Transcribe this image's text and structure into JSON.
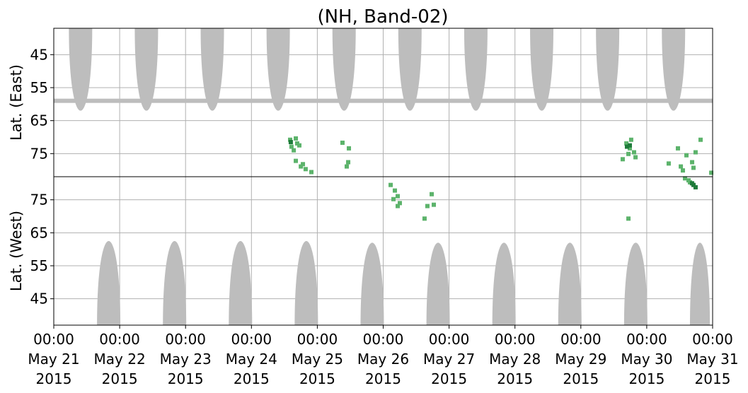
{
  "chart_data": [
    {
      "type": "scatter",
      "title": "(NH, Band-02)",
      "ylabel": "Lat. (East)",
      "xlim": [
        "2015-05-21 00:00",
        "2015-05-31 00:00"
      ],
      "ylim": [
        82,
        37
      ],
      "yticks": [
        45,
        55,
        65,
        75
      ],
      "grid": true,
      "band": {
        "lat": 59,
        "color": "#bdbdbd"
      },
      "regions": {
        "color": "#bdbdbd",
        "start": [
          "2015-05-21 05:30",
          "2015-05-22 05:30",
          "2015-05-23 05:30",
          "2015-05-24 05:30",
          "2015-05-25 05:30",
          "2015-05-26 05:30",
          "2015-05-27 05:30",
          "2015-05-28 05:30",
          "2015-05-29 05:30",
          "2015-05-30 05:30"
        ],
        "end": [
          "2015-05-21 14:00",
          "2015-05-22 14:00",
          "2015-05-23 14:00",
          "2015-05-24 14:00",
          "2015-05-25 14:00",
          "2015-05-26 14:00",
          "2015-05-27 14:00",
          "2015-05-28 14:00",
          "2015-05-29 14:00",
          "2015-05-30 14:00"
        ],
        "lat": [
          62,
          62,
          62,
          62,
          62,
          62,
          62,
          62,
          62,
          62
        ]
      },
      "series": [
        {
          "color": "#5cb36b",
          "x": [
            "2015-05-24 14:06",
            "2015-05-24 16:10",
            "2015-05-24 14:35",
            "2015-05-24 16:40",
            "2015-05-24 15:25",
            "2015-05-24 17:27",
            "2015-05-24 16:10",
            "2015-05-24 18:00",
            "2015-05-24 19:45",
            "2015-05-24 21:50",
            "2015-05-24 18:45",
            "2015-05-25 09:10",
            "2015-05-25 10:43",
            "2015-05-25 11:15",
            "2015-05-25 11:30",
            "2015-05-29 15:15",
            "2015-05-29 16:35",
            "2015-05-29 17:50",
            "2015-05-29 19:23",
            "2015-05-29 18:20",
            "2015-05-29 19:55",
            "2015-05-29 17:20",
            "2015-05-30 08:00",
            "2015-05-30 11:22",
            "2015-05-30 12:25",
            "2015-05-30 14:28",
            "2015-05-30 16:32",
            "2015-05-30 17:48",
            "2015-05-30 19:37",
            "2015-05-30 17:02",
            "2015-05-30 23:30",
            "2015-05-30 13:10"
          ],
          "values": [
            70.8,
            70.4,
            72.9,
            71.9,
            74.0,
            72.5,
            77.2,
            78.9,
            79.7,
            80.6,
            78.2,
            71.7,
            78.9,
            77.6,
            73.4,
            76.7,
            71.9,
            73.4,
            74.6,
            70.8,
            76.1,
            75.1,
            78.0,
            73.4,
            78.9,
            75.5,
            77.6,
            74.6,
            70.8,
            79.3,
            80.8,
            80.1
          ]
        },
        {
          "color": "#1e7b3a",
          "x": [
            "2015-05-24 14:20",
            "2015-05-29 16:48",
            "2015-05-29 17:50"
          ],
          "values": [
            71.5,
            72.9,
            72.5
          ]
        }
      ]
    },
    {
      "type": "scatter",
      "ylabel": "Lat. (West)",
      "xlim": [
        "2015-05-21 00:00",
        "2015-05-31 00:00"
      ],
      "ylim": [
        37,
        82
      ],
      "yticks": [
        45,
        55,
        65,
        75
      ],
      "grid": true,
      "xticks": [
        {
          "value": "2015-05-21 00:00",
          "label": [
            "00:00",
            "May 21",
            "2015"
          ]
        },
        {
          "value": "2015-05-22 00:00",
          "label": [
            "00:00",
            "May 22",
            "2015"
          ]
        },
        {
          "value": "2015-05-23 00:00",
          "label": [
            "00:00",
            "May 23",
            "2015"
          ]
        },
        {
          "value": "2015-05-24 00:00",
          "label": [
            "00:00",
            "May 24",
            "2015"
          ]
        },
        {
          "value": "2015-05-25 00:00",
          "label": [
            "00:00",
            "May 25",
            "2015"
          ]
        },
        {
          "value": "2015-05-26 00:00",
          "label": [
            "00:00",
            "May 26",
            "2015"
          ]
        },
        {
          "value": "2015-05-27 00:00",
          "label": [
            "00:00",
            "May 27",
            "2015"
          ]
        },
        {
          "value": "2015-05-28 00:00",
          "label": [
            "00:00",
            "May 28",
            "2015"
          ]
        },
        {
          "value": "2015-05-29 00:00",
          "label": [
            "00:00",
            "May 29",
            "2015"
          ]
        },
        {
          "value": "2015-05-30 00:00",
          "label": [
            "00:00",
            "May 30",
            "2015"
          ]
        },
        {
          "value": "2015-05-31 00:00",
          "label": [
            "00:00",
            "May 31",
            "2015"
          ]
        }
      ],
      "regions": {
        "color": "#bdbdbd",
        "start": [
          "2015-05-21 15:45",
          "2015-05-22 15:45",
          "2015-05-23 15:45",
          "2015-05-24 15:45",
          "2015-05-25 15:45",
          "2015-05-26 15:45",
          "2015-05-27 15:45",
          "2015-05-28 15:45",
          "2015-05-29 15:45",
          "2015-05-30 15:45"
        ],
        "end": [
          "2015-05-22 00:15",
          "2015-05-23 00:15",
          "2015-05-24 00:15",
          "2015-05-25 00:15",
          "2015-05-26 00:15",
          "2015-05-27 00:15",
          "2015-05-28 00:15",
          "2015-05-29 00:15",
          "2015-05-30 00:15",
          "2015-05-30 23:00"
        ],
        "lat": [
          62.5,
          62.5,
          62.5,
          62.5,
          62,
          62,
          62,
          62,
          62,
          62
        ]
      },
      "series": [
        {
          "color": "#5cb36b",
          "x": [
            "2015-05-30 13:57",
            "2015-05-30 15:45",
            "2015-05-30 15:14",
            "2015-05-26 02:43",
            "2015-05-26 04:15",
            "2015-05-26 05:17",
            "2015-05-26 03:44",
            "2015-05-26 05:17",
            "2015-05-26 06:03",
            "2015-05-26 17:40",
            "2015-05-26 16:06",
            "2015-05-26 18:26",
            "2015-05-26 15:04",
            "2015-05-29 17:20"
          ],
          "values": [
            81.5,
            80.3,
            80.9,
            79.5,
            77.8,
            76.1,
            75.2,
            73.1,
            74.0,
            76.7,
            73.1,
            73.5,
            69.3,
            69.3
          ]
        },
        {
          "color": "#1e7b3a",
          "x": [
            "2015-05-30 17:02",
            "2015-05-30 17:48",
            "2015-05-30 16:30"
          ],
          "values": [
            79.5,
            78.8,
            80.0
          ]
        }
      ]
    }
  ]
}
